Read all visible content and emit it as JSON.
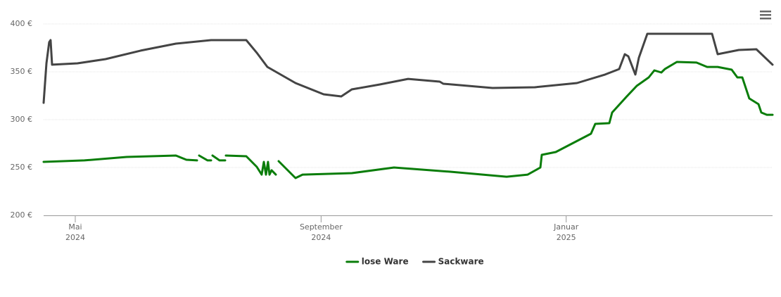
{
  "chart_data": {
    "type": "line",
    "ylim": [
      200,
      400
    ],
    "yticks": [
      {
        "value": 200,
        "label": "200 €"
      },
      {
        "value": 250,
        "label": "250 €"
      },
      {
        "value": 300,
        "label": "300 €"
      },
      {
        "value": 350,
        "label": "350 €"
      },
      {
        "value": 400,
        "label": "400 €"
      }
    ],
    "xlim": [
      2024.29,
      2025.2804
    ],
    "xticks": [
      {
        "value": 2024.333,
        "label": "Mai 2024"
      },
      {
        "value": 2024.667,
        "label": "September 2024"
      },
      {
        "value": 2025.0,
        "label": "Januar 2025"
      }
    ],
    "grid": true,
    "legend": "bottom",
    "series": [
      {
        "name": "lose Ware",
        "color": "#0a7d0a",
        "x": [
          2024.29,
          2024.3454,
          2024.4028,
          2024.4697,
          2024.484,
          2024.4984,
          2024.5003,
          2024.5013,
          2024.5127,
          2024.5175,
          2024.5185,
          2024.5194,
          2024.529,
          2024.5366,
          2024.5371,
          2024.5376,
          2024.5653,
          2024.5796,
          2024.5863,
          2024.5892,
          2024.5921,
          2024.5949,
          2024.5969,
          2024.5997,
          2024.6055,
          2024.6074,
          2024.6093,
          2024.6179,
          2024.6322,
          2024.6418,
          2024.7087,
          2024.7661,
          2024.8425,
          2024.919,
          2024.9477,
          2024.9649,
          2024.9668,
          2024.9859,
          2025.0337,
          2025.0395,
          2025.0586,
          2025.0624,
          2025.0815,
          2025.0959,
          2025.1121,
          2025.1198,
          2025.1293,
          2025.1341,
          2025.1504,
          2025.1771,
          2025.1915,
          2025.2058,
          2025.2249,
          2025.2326,
          2025.2393,
          2025.2488,
          2025.2613,
          2025.2651,
          2025.2727,
          2025.2804
        ],
        "values": [
          255.9,
          257.4,
          261,
          262.5,
          258.1,
          257.4,
          null,
          262.5,
          257.4,
          257.4,
          null,
          262.5,
          257.4,
          257.4,
          null,
          262.5,
          261.8,
          250.7,
          242.6,
          255.9,
          242.6,
          255.9,
          242.6,
          247.1,
          242.6,
          null,
          256.6,
          250,
          239,
          242.6,
          244.1,
          250,
          245.6,
          240.4,
          242.6,
          250,
          263.2,
          266.2,
          285.3,
          295.6,
          296.3,
          307.4,
          323.5,
          335.3,
          344.1,
          351.5,
          349.3,
          352.9,
          360.3,
          359.6,
          355.1,
          355.1,
          352.2,
          344.1,
          344.1,
          322.1,
          316.2,
          307.4,
          305.1,
          305.1
        ]
      },
      {
        "name": "Sackware",
        "color": "#444444",
        "x": [
          2024.29,
          2024.2938,
          2024.2976,
          2024.2995,
          2024.3015,
          2024.3359,
          2024.3741,
          2024.4219,
          2024.4697,
          2024.5175,
          2024.5653,
          2024.5796,
          2024.594,
          2024.6322,
          2024.6705,
          2024.6944,
          2024.7087,
          2024.7469,
          2024.7852,
          2024.8282,
          2024.833,
          2024.8999,
          2024.9573,
          2025.0146,
          2025.0529,
          2025.072,
          2025.0796,
          2025.0844,
          2025.094,
          2025.0988,
          2025.1102,
          2025.1982,
          2025.2058,
          2025.2345,
          2025.2584,
          2025.2804
        ],
        "values": [
          317.6,
          358.8,
          380.9,
          383.1,
          357.4,
          358.8,
          363.2,
          372.1,
          379.4,
          383.1,
          383.1,
          369.9,
          355.1,
          338.2,
          326.5,
          324.3,
          331.6,
          336.8,
          342.6,
          339.7,
          337.5,
          333.1,
          333.8,
          338.2,
          347.1,
          352.9,
          368.4,
          366.2,
          347.1,
          364.7,
          389.7,
          389.7,
          368.4,
          372.8,
          373.5,
          357.4
        ]
      }
    ]
  }
}
